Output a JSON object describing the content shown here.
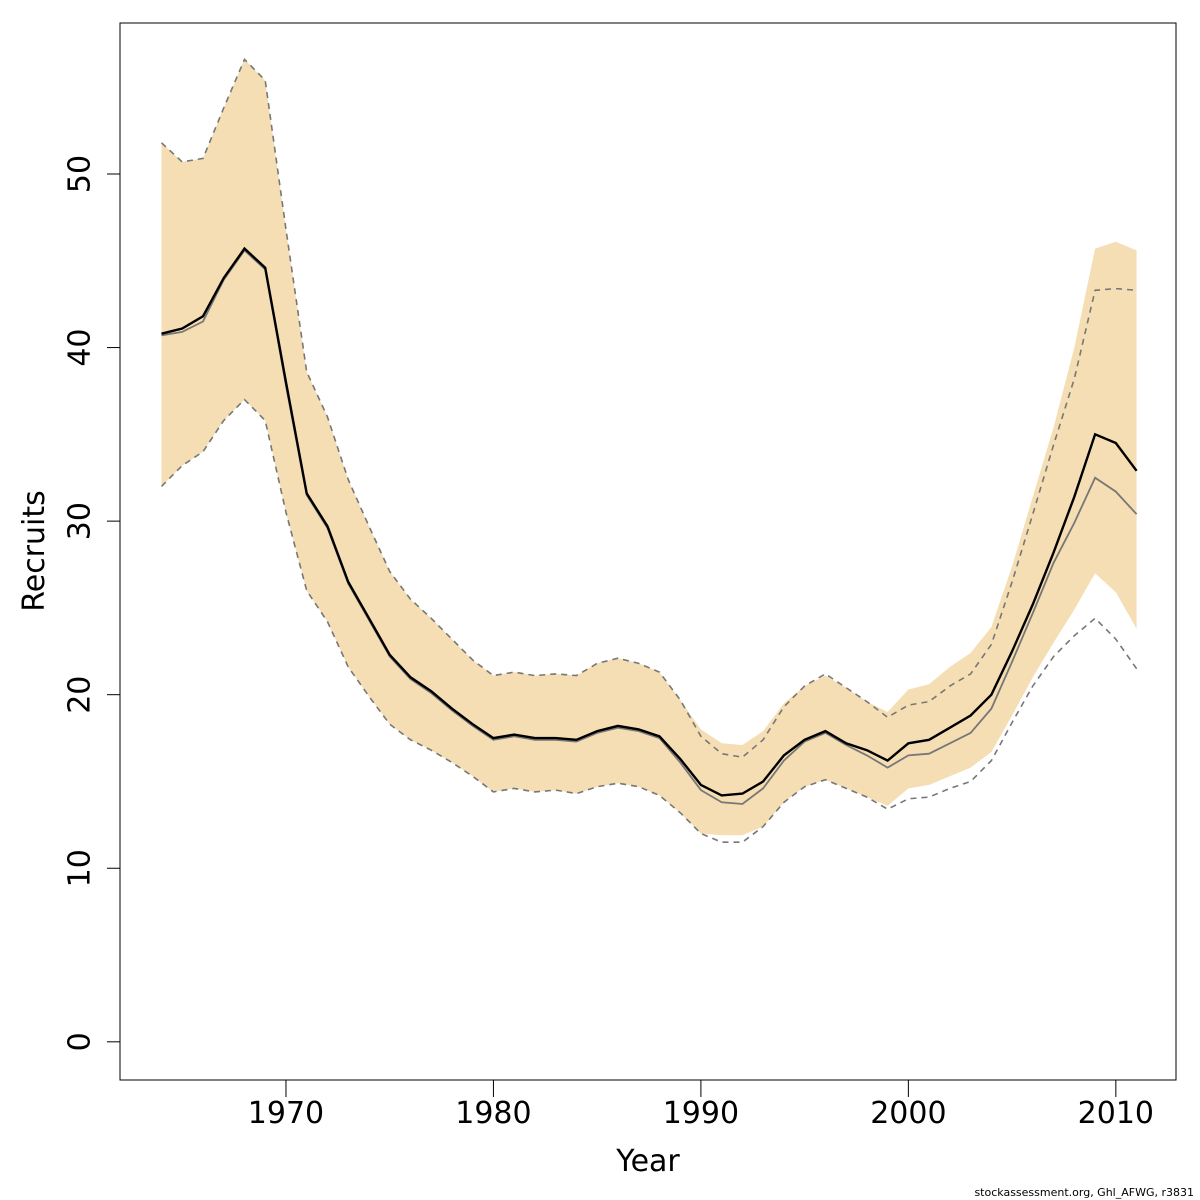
{
  "chart_data": {
    "type": "line",
    "xlabel": "Year",
    "ylabel": "Recruits",
    "xlim": [
      1962,
      2012.9
    ],
    "ylim": [
      -2.2,
      58.7
    ],
    "x_ticks": [
      1970,
      1980,
      1990,
      2000,
      2010
    ],
    "y_ticks": [
      0,
      10,
      20,
      30,
      40,
      50
    ],
    "grid": false,
    "colors": {
      "band": "#f5deb3",
      "main_line": "#000000",
      "secondary_line": "#777777",
      "dashed": "#777777"
    },
    "x": [
      1964,
      1965,
      1966,
      1967,
      1968,
      1969,
      1970,
      1971,
      1972,
      1973,
      1974,
      1975,
      1976,
      1977,
      1978,
      1979,
      1980,
      1981,
      1982,
      1983,
      1984,
      1985,
      1986,
      1987,
      1988,
      1989,
      1990,
      1991,
      1992,
      1993,
      1994,
      1995,
      1996,
      1997,
      1998,
      1999,
      2000,
      2001,
      2002,
      2003,
      2004,
      2005,
      2006,
      2007,
      2008,
      2009,
      2010,
      2011
    ],
    "band_lower": [
      32.0,
      33.2,
      34.0,
      35.8,
      37.0,
      35.8,
      30.5,
      26.0,
      24.2,
      21.6,
      19.9,
      18.3,
      17.4,
      16.8,
      16.1,
      15.3,
      14.4,
      14.6,
      14.4,
      14.5,
      14.3,
      14.7,
      14.9,
      14.7,
      14.2,
      13.2,
      12.0,
      11.9,
      11.9,
      12.4,
      13.8,
      14.7,
      15.1,
      14.6,
      14.1,
      13.6,
      14.6,
      14.8,
      15.3,
      15.8,
      16.7,
      18.8,
      21.0,
      23.0,
      24.9,
      27.0,
      25.9,
      23.8
    ],
    "band_upper": [
      51.8,
      50.7,
      50.9,
      53.8,
      56.6,
      55.4,
      46.8,
      38.6,
      36.0,
      32.4,
      29.7,
      27.1,
      25.5,
      24.4,
      23.2,
      22.0,
      21.1,
      21.3,
      21.1,
      21.2,
      21.1,
      21.8,
      22.1,
      21.8,
      21.3,
      19.7,
      18.0,
      17.2,
      17.1,
      17.9,
      19.5,
      20.5,
      21.1,
      20.4,
      19.6,
      19.0,
      20.3,
      20.6,
      21.6,
      22.4,
      23.9,
      27.4,
      31.4,
      35.4,
      40.0,
      45.7,
      46.1,
      45.6
    ],
    "series": [
      {
        "values": [
          40.8,
          41.1,
          41.8,
          44.0,
          45.7,
          44.6,
          38.0,
          31.6,
          29.7,
          26.5,
          24.4,
          22.3,
          21.0,
          20.2,
          19.2,
          18.3,
          17.5,
          17.7,
          17.5,
          17.5,
          17.4,
          17.9,
          18.2,
          18.0,
          17.6,
          16.3,
          14.8,
          14.2,
          14.3,
          15.0,
          16.5,
          17.4,
          17.9,
          17.2,
          16.8,
          16.2,
          17.2,
          17.4,
          18.1,
          18.8,
          20.0,
          22.5,
          25.2,
          28.2,
          31.4,
          35.0,
          34.5,
          32.9
        ]
      },
      {
        "values": [
          40.7,
          40.9,
          41.5,
          43.9,
          45.6,
          44.5,
          37.8,
          31.5,
          29.6,
          26.4,
          24.3,
          22.2,
          20.9,
          20.1,
          19.1,
          18.2,
          17.4,
          17.6,
          17.4,
          17.4,
          17.3,
          17.8,
          18.1,
          17.9,
          17.5,
          16.1,
          14.5,
          13.8,
          13.7,
          14.6,
          16.2,
          17.3,
          17.8,
          17.1,
          16.5,
          15.8,
          16.5,
          16.6,
          17.2,
          17.8,
          19.2,
          21.9,
          24.7,
          27.6,
          29.9,
          32.5,
          31.7,
          30.4
        ]
      }
    ],
    "dashed_lower": [
      32.0,
      33.2,
      34.0,
      35.8,
      37.0,
      35.8,
      30.5,
      26.0,
      24.2,
      21.6,
      19.9,
      18.3,
      17.4,
      16.8,
      16.1,
      15.3,
      14.4,
      14.6,
      14.4,
      14.5,
      14.3,
      14.7,
      14.9,
      14.7,
      14.2,
      13.2,
      12.0,
      11.5,
      11.5,
      12.4,
      13.8,
      14.7,
      15.1,
      14.6,
      14.1,
      13.4,
      14.0,
      14.1,
      14.6,
      15.0,
      16.2,
      18.4,
      20.5,
      22.2,
      23.4,
      24.4,
      23.2,
      21.5
    ],
    "dashed_upper": [
      51.8,
      50.7,
      50.9,
      53.8,
      56.6,
      55.4,
      46.8,
      38.6,
      36.0,
      32.4,
      29.7,
      27.1,
      25.5,
      24.4,
      23.2,
      22.0,
      21.1,
      21.3,
      21.1,
      21.2,
      21.1,
      21.8,
      22.1,
      21.8,
      21.3,
      19.7,
      17.6,
      16.6,
      16.4,
      17.4,
      19.3,
      20.5,
      21.2,
      20.4,
      19.6,
      18.7,
      19.4,
      19.6,
      20.5,
      21.2,
      22.9,
      26.5,
      30.4,
      34.4,
      38.2,
      43.3,
      43.4,
      43.3
    ],
    "credit": "stockassessment.org, Ghl_AFWG, r3831"
  }
}
